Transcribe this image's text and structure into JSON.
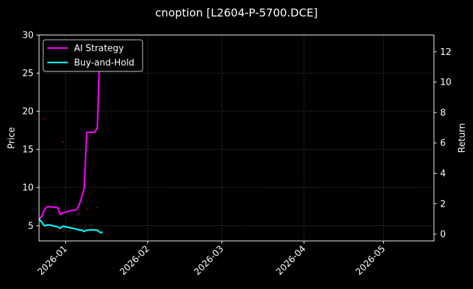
{
  "chart_data": {
    "type": "line",
    "title": "cnoption [L2604-P-5700.DCE]",
    "xlabel": "",
    "ylabel": "Price",
    "y2label": "Return",
    "xlim": [
      "2025-12-22",
      "2026-05-20"
    ],
    "ylim": [
      3.0,
      30.0
    ],
    "y2lim": [
      -0.45,
      13.1
    ],
    "x_ticks": [
      "2026-01",
      "2026-02",
      "2026-03",
      "2026-04",
      "2026-05"
    ],
    "y_ticks": [
      5,
      10,
      15,
      20,
      25,
      30
    ],
    "y2_ticks": [
      0,
      2,
      4,
      6,
      8,
      10,
      12
    ],
    "grid": true,
    "legend_position": "top-left",
    "series": [
      {
        "name": "AI Strategy",
        "axis": "right",
        "color": "#ff00ff",
        "x": [
          "2025-12-22",
          "2025-12-23",
          "2025-12-24",
          "2025-12-25",
          "2025-12-26",
          "2025-12-29",
          "2025-12-30",
          "2025-12-31",
          "2026-01-02",
          "2026-01-05",
          "2026-01-06",
          "2026-01-07",
          "2026-01-08",
          "2026-01-09",
          "2026-01-12",
          "2026-01-13",
          "2026-01-14"
        ],
        "values": [
          1.0,
          1.15,
          1.6,
          1.8,
          1.8,
          1.75,
          1.3,
          1.4,
          1.5,
          1.6,
          1.85,
          2.4,
          3.0,
          6.7,
          6.7,
          7.0,
          12.3
        ]
      },
      {
        "name": "Buy-and-Hold",
        "axis": "right",
        "color": "#00ffff",
        "x": [
          "2025-12-22",
          "2025-12-23",
          "2025-12-24",
          "2025-12-25",
          "2025-12-26",
          "2025-12-29",
          "2025-12-30",
          "2025-12-31",
          "2026-01-02",
          "2026-01-05",
          "2026-01-06",
          "2026-01-07",
          "2026-01-08",
          "2026-01-09",
          "2026-01-12",
          "2026-01-13",
          "2026-01-14",
          "2026-01-15"
        ],
        "values": [
          1.0,
          0.78,
          0.55,
          0.6,
          0.6,
          0.48,
          0.38,
          0.52,
          0.44,
          0.34,
          0.26,
          0.28,
          0.17,
          0.26,
          0.28,
          0.26,
          0.11,
          0.12
        ]
      },
      {
        "name": "",
        "type": "scatter",
        "axis": "left",
        "color": "#8b0026",
        "x": [
          "2025-12-24",
          "2025-12-31",
          "2026-01-06",
          "2026-01-09",
          "2026-01-13"
        ],
        "values": [
          19.0,
          16.0,
          6.6,
          7.2,
          7.4
        ]
      }
    ]
  }
}
